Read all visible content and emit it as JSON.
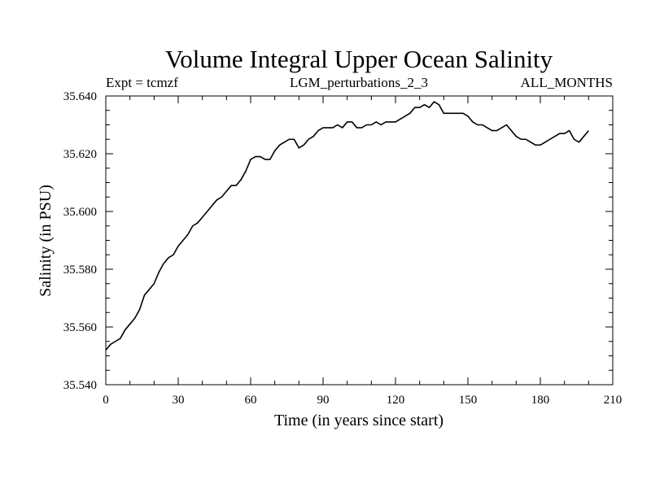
{
  "chart_data": {
    "type": "line",
    "title": "Volume Integral Upper Ocean Salinity",
    "subtitle_left": "Expt = tcmzf",
    "subtitle_center": "LGM_perturbations_2_3",
    "subtitle_right": "ALL_MONTHS",
    "xlabel": "Time (in years since start)",
    "ylabel": "Salinity (in PSU)",
    "xlim": [
      0,
      210
    ],
    "ylim": [
      35.54,
      35.64
    ],
    "x_ticks": [
      "0",
      "30",
      "60",
      "90",
      "120",
      "150",
      "180",
      "210"
    ],
    "y_ticks": [
      "35.540",
      "35.560",
      "35.580",
      "35.600",
      "35.620",
      "35.640"
    ],
    "x_tick_values": [
      0,
      30,
      60,
      90,
      120,
      150,
      180,
      210
    ],
    "y_tick_values": [
      35.54,
      35.56,
      35.58,
      35.6,
      35.62,
      35.64
    ],
    "grid": false,
    "line_color": "#000000",
    "series": [
      {
        "x": [
          0,
          2,
          4,
          6,
          8,
          10,
          12,
          14,
          16,
          18,
          20,
          22,
          24,
          26,
          28,
          30,
          32,
          34,
          36,
          38,
          40,
          42,
          44,
          46,
          48,
          50,
          52,
          54,
          56,
          58,
          60,
          62,
          64,
          66,
          68,
          70,
          72,
          74,
          76,
          78,
          80,
          82,
          84,
          86,
          88,
          90,
          92,
          94,
          96,
          98,
          100,
          102,
          104,
          106,
          108,
          110,
          112,
          114,
          116,
          118,
          120,
          122,
          124,
          126,
          128,
          130,
          132,
          134,
          136,
          138,
          140,
          142,
          144,
          146,
          148,
          150,
          152,
          154,
          156,
          158,
          160,
          162,
          164,
          166,
          168,
          170,
          172,
          174,
          176,
          178,
          180,
          182,
          184,
          186,
          188,
          190,
          192,
          194,
          196,
          198,
          200
        ],
        "values": [
          35.552,
          35.554,
          35.555,
          35.556,
          35.559,
          35.561,
          35.563,
          35.566,
          35.571,
          35.573,
          35.575,
          35.579,
          35.582,
          35.584,
          35.585,
          35.588,
          35.59,
          35.592,
          35.595,
          35.596,
          35.598,
          35.6,
          35.602,
          35.604,
          35.605,
          35.607,
          35.609,
          35.609,
          35.611,
          35.614,
          35.618,
          35.619,
          35.619,
          35.618,
          35.618,
          35.621,
          35.623,
          35.624,
          35.625,
          35.625,
          35.622,
          35.623,
          35.625,
          35.626,
          35.628,
          35.629,
          35.629,
          35.629,
          35.63,
          35.629,
          35.631,
          35.631,
          35.629,
          35.629,
          35.63,
          35.63,
          35.631,
          35.63,
          35.631,
          35.631,
          35.631,
          35.632,
          35.633,
          35.634,
          35.636,
          35.636,
          35.637,
          35.636,
          35.638,
          35.637,
          35.634,
          35.634,
          35.634,
          35.634,
          35.634,
          35.633,
          35.631,
          35.63,
          35.63,
          35.629,
          35.628,
          35.628,
          35.629,
          35.63,
          35.628,
          35.626,
          35.625,
          35.625,
          35.624,
          35.623,
          35.623,
          35.624,
          35.625,
          35.626,
          35.627,
          35.627,
          35.628,
          35.625,
          35.624,
          35.626,
          35.628
        ]
      }
    ]
  }
}
